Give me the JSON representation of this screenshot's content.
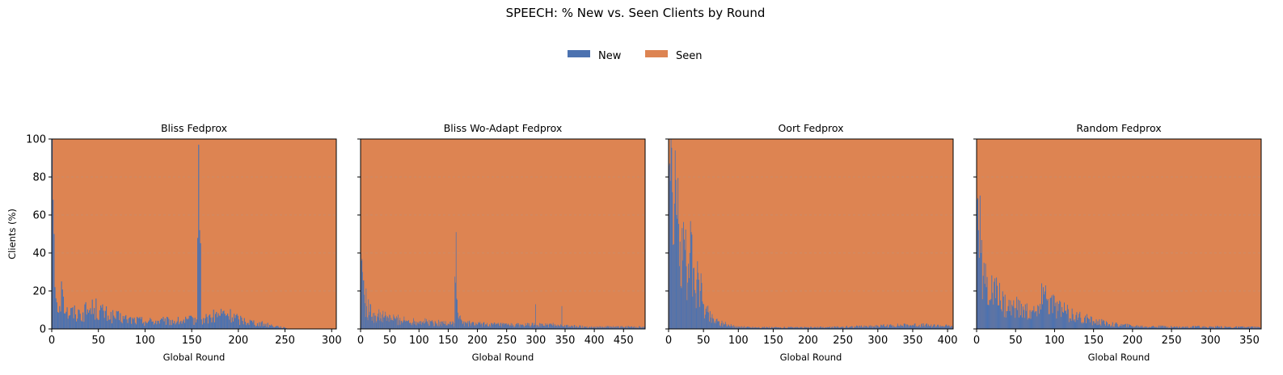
{
  "figure": {
    "title": "SPEECH: % New vs. Seen Clients by Round",
    "legend": {
      "placement": "top-center",
      "entries": [
        {
          "label": "New",
          "color": "#4c72b0"
        },
        {
          "label": "Seen",
          "color": "#dd8452"
        }
      ]
    }
  },
  "chart_data": [
    {
      "type": "bar",
      "stacked": true,
      "title": "Bliss Fedprox",
      "xlabel": "Global Round",
      "ylabel": "Clients (%)",
      "xlim": [
        0,
        305
      ],
      "ylim": [
        0,
        100
      ],
      "xticks": [
        0,
        50,
        100,
        150,
        200,
        250,
        300
      ],
      "yticks": [
        0,
        20,
        40,
        60,
        80,
        100
      ],
      "grid": "y-dashed",
      "rounds_count": 305,
      "series": [
        {
          "name": "New",
          "color": "#4c72b0",
          "keypoints": [
            [
              0,
              100
            ],
            [
              1,
              68
            ],
            [
              2,
              50
            ],
            [
              3,
              22
            ],
            [
              5,
              14
            ],
            [
              8,
              12
            ],
            [
              10,
              25
            ],
            [
              12,
              17
            ],
            [
              15,
              9
            ],
            [
              30,
              8
            ],
            [
              45,
              11
            ],
            [
              60,
              7
            ],
            [
              80,
              5
            ],
            [
              100,
              4
            ],
            [
              120,
              4
            ],
            [
              140,
              4
            ],
            [
              155,
              5
            ],
            [
              157,
              97
            ],
            [
              158,
              52
            ],
            [
              160,
              5
            ],
            [
              170,
              6
            ],
            [
              185,
              8
            ],
            [
              200,
              5
            ],
            [
              220,
              3
            ],
            [
              240,
              1.5
            ],
            [
              250,
              0.5
            ],
            [
              252,
              0
            ],
            [
              305,
              0
            ]
          ]
        },
        {
          "name": "Seen",
          "color": "#dd8452",
          "rule": "100 - New"
        }
      ]
    },
    {
      "type": "bar",
      "stacked": true,
      "title": "Bliss Wo-Adapt Fedprox",
      "xlabel": "Global Round",
      "ylabel": "",
      "xlim": [
        0,
        487
      ],
      "ylim": [
        0,
        100
      ],
      "xticks": [
        0,
        50,
        100,
        150,
        200,
        250,
        300,
        350,
        400,
        450
      ],
      "yticks": [
        0,
        20,
        40,
        60,
        80,
        100
      ],
      "grid": "y-dashed",
      "rounds_count": 487,
      "series": [
        {
          "name": "New",
          "color": "#4c72b0",
          "keypoints": [
            [
              0,
              40
            ],
            [
              3,
              30
            ],
            [
              6,
              18
            ],
            [
              10,
              12
            ],
            [
              15,
              9
            ],
            [
              25,
              7
            ],
            [
              40,
              6
            ],
            [
              60,
              5
            ],
            [
              80,
              4
            ],
            [
              100,
              4
            ],
            [
              130,
              3
            ],
            [
              160,
              3
            ],
            [
              163,
              51
            ],
            [
              164,
              16
            ],
            [
              167,
              6
            ],
            [
              175,
              3
            ],
            [
              200,
              2.5
            ],
            [
              250,
              2
            ],
            [
              298,
              2
            ],
            [
              299,
              13
            ],
            [
              300,
              2
            ],
            [
              343,
              2
            ],
            [
              344,
              12
            ],
            [
              345,
              1.5
            ],
            [
              400,
              1
            ],
            [
              487,
              1
            ]
          ]
        },
        {
          "name": "Seen",
          "color": "#dd8452",
          "rule": "100 - New"
        }
      ]
    },
    {
      "type": "bar",
      "stacked": true,
      "title": "Oort Fedprox",
      "xlabel": "Global Round",
      "ylabel": "",
      "xlim": [
        0,
        408
      ],
      "ylim": [
        0,
        100
      ],
      "xticks": [
        0,
        50,
        100,
        150,
        200,
        250,
        300,
        350,
        400
      ],
      "yticks": [
        0,
        20,
        40,
        60,
        80,
        100
      ],
      "grid": "y-dashed",
      "rounds_count": 408,
      "series": [
        {
          "name": "New",
          "color": "#4c72b0",
          "keypoints": [
            [
              0,
              86
            ],
            [
              2,
              78
            ],
            [
              5,
              72
            ],
            [
              8,
              66
            ],
            [
              12,
              58
            ],
            [
              16,
              46
            ],
            [
              20,
              36
            ],
            [
              25,
              33
            ],
            [
              30,
              40
            ],
            [
              35,
              32
            ],
            [
              40,
              26
            ],
            [
              45,
              20
            ],
            [
              50,
              13
            ],
            [
              55,
              9
            ],
            [
              60,
              6
            ],
            [
              70,
              4
            ],
            [
              80,
              2.5
            ],
            [
              90,
              1.5
            ],
            [
              100,
              1
            ],
            [
              150,
              0.7
            ],
            [
              200,
              0.7
            ],
            [
              250,
              1
            ],
            [
              300,
              1.5
            ],
            [
              350,
              2
            ],
            [
              400,
              1.5
            ],
            [
              408,
              1
            ]
          ]
        },
        {
          "name": "Seen",
          "color": "#dd8452",
          "rule": "100 - New"
        }
      ]
    },
    {
      "type": "bar",
      "stacked": true,
      "title": "Random Fedprox",
      "xlabel": "Global Round",
      "ylabel": "",
      "xlim": [
        0,
        365
      ],
      "ylim": [
        0,
        100
      ],
      "xticks": [
        0,
        50,
        100,
        150,
        200,
        250,
        300,
        350
      ],
      "yticks": [
        0,
        20,
        40,
        60,
        80,
        100
      ],
      "grid": "y-dashed",
      "rounds_count": 365,
      "series": [
        {
          "name": "New",
          "color": "#4c72b0",
          "keypoints": [
            [
              0,
              68
            ],
            [
              2,
              52
            ],
            [
              5,
              40
            ],
            [
              8,
              28
            ],
            [
              12,
              22
            ],
            [
              20,
              19
            ],
            [
              30,
              15
            ],
            [
              40,
              12
            ],
            [
              50,
              11
            ],
            [
              60,
              10
            ],
            [
              70,
              9
            ],
            [
              80,
              8
            ],
            [
              83,
              24
            ],
            [
              85,
              22
            ],
            [
              90,
              15
            ],
            [
              100,
              12
            ],
            [
              110,
              9
            ],
            [
              130,
              6
            ],
            [
              150,
              4
            ],
            [
              170,
              2.5
            ],
            [
              200,
              1.5
            ],
            [
              250,
              1
            ],
            [
              300,
              1
            ],
            [
              365,
              0.8
            ]
          ]
        },
        {
          "name": "Seen",
          "color": "#dd8452",
          "rule": "100 - New"
        }
      ]
    }
  ]
}
